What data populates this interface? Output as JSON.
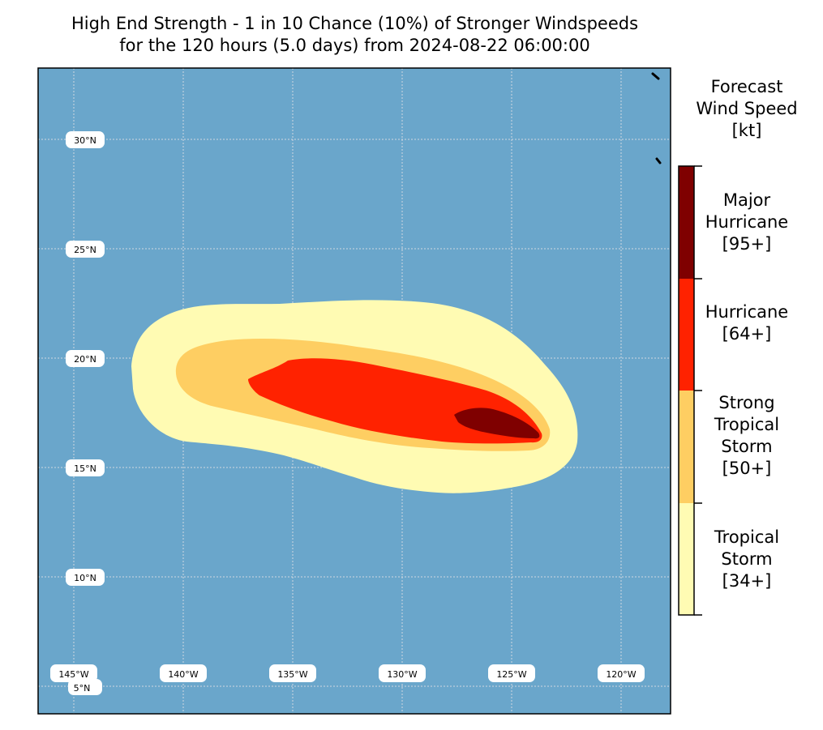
{
  "title": {
    "line1": "High End Strength - 1 in 10 Chance (10%) of Stronger Windspeeds",
    "line2": "for the 120 hours (5.0 days) from 2024-08-22 06:00:00"
  },
  "map": {
    "extent": {
      "lon_min": -146.6,
      "lon_max": -117.8,
      "lat_min": 3.8,
      "lat_max": 33.2
    },
    "lat_labels": [
      "30°N",
      "25°N",
      "20°N",
      "15°N",
      "10°N",
      "5°N"
    ],
    "lon_labels": [
      "145°W",
      "140°W",
      "135°W",
      "130°W",
      "125°W",
      "120°W"
    ],
    "colors": {
      "ocean": "#6aa6cb",
      "land": "#000000",
      "grid": "#d0d8e0"
    }
  },
  "colorbar": {
    "title_lines": [
      "Forecast",
      "Wind Speed",
      "[kt]"
    ],
    "categories": [
      {
        "lines": [
          "Tropical",
          "Storm",
          "[34+]"
        ],
        "threshold": 34,
        "color": "#fffbb3"
      },
      {
        "lines": [
          "Strong",
          "Tropical",
          "Storm",
          "[50+]"
        ],
        "threshold": 50,
        "color": "#fece62"
      },
      {
        "lines": [
          "Hurricane",
          "[64+]"
        ],
        "threshold": 64,
        "color": "#ff2200"
      },
      {
        "lines": [
          "Major",
          "Hurricane",
          "[95+]"
        ],
        "threshold": 95,
        "color": "#7f0000"
      }
    ]
  }
}
